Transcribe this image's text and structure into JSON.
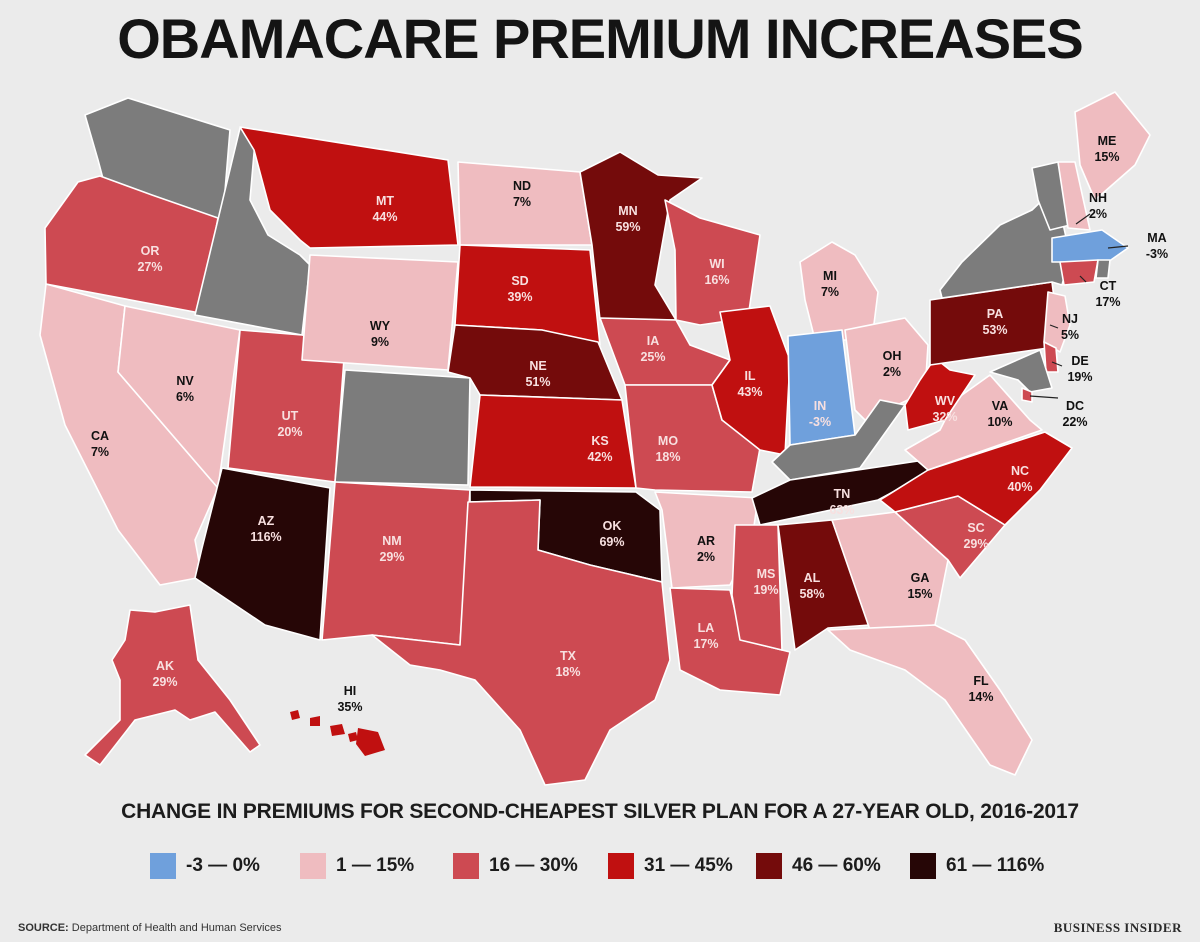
{
  "title": "OBAMACARE PREMIUM INCREASES",
  "subtitle": "CHANGE IN PREMIUMS FOR SECOND-CHEAPEST SILVER PLAN FOR A 27-YEAR OLD, 2016-2017",
  "colors": {
    "c0": "#6fa0dc",
    "c1": "#efbcc0",
    "c2": "#cd4a52",
    "c3": "#c01010",
    "c4": "#740b0b",
    "c5": "#260606",
    "none": "#7c7c7c",
    "border": "#ffffff"
  },
  "legend": [
    {
      "label": "-3 — 0%",
      "color": "#6fa0dc"
    },
    {
      "label": "1 — 15%",
      "color": "#efbcc0"
    },
    {
      "label": "16 — 30%",
      "color": "#cd4a52"
    },
    {
      "label": "31 — 45%",
      "color": "#c01010"
    },
    {
      "label": "46 — 60%",
      "color": "#740b0b"
    },
    {
      "label": "61 — 116%",
      "color": "#260606"
    }
  ],
  "states": [
    {
      "abbr": "WA",
      "value": null,
      "label": ""
    },
    {
      "abbr": "OR",
      "value": 27,
      "label": "27%"
    },
    {
      "abbr": "CA",
      "value": 7,
      "label": "7%"
    },
    {
      "abbr": "ID",
      "value": null,
      "label": ""
    },
    {
      "abbr": "NV",
      "value": 6,
      "label": "6%"
    },
    {
      "abbr": "AZ",
      "value": 116,
      "label": "116%"
    },
    {
      "abbr": "UT",
      "value": 20,
      "label": "20%"
    },
    {
      "abbr": "MT",
      "value": 44,
      "label": "44%"
    },
    {
      "abbr": "WY",
      "value": 9,
      "label": "9%"
    },
    {
      "abbr": "CO",
      "value": null,
      "label": ""
    },
    {
      "abbr": "NM",
      "value": 29,
      "label": "29%"
    },
    {
      "abbr": "ND",
      "value": 7,
      "label": "7%"
    },
    {
      "abbr": "SD",
      "value": 39,
      "label": "39%"
    },
    {
      "abbr": "NE",
      "value": 51,
      "label": "51%"
    },
    {
      "abbr": "KS",
      "value": 42,
      "label": "42%"
    },
    {
      "abbr": "OK",
      "value": 69,
      "label": "69%"
    },
    {
      "abbr": "TX",
      "value": 18,
      "label": "18%"
    },
    {
      "abbr": "MN",
      "value": 59,
      "label": "59%"
    },
    {
      "abbr": "IA",
      "value": 25,
      "label": "25%"
    },
    {
      "abbr": "MO",
      "value": 18,
      "label": "18%"
    },
    {
      "abbr": "AR",
      "value": 2,
      "label": "2%"
    },
    {
      "abbr": "LA",
      "value": 17,
      "label": "17%"
    },
    {
      "abbr": "WI",
      "value": 16,
      "label": "16%"
    },
    {
      "abbr": "IL",
      "value": 43,
      "label": "43%"
    },
    {
      "abbr": "MI",
      "value": 7,
      "label": "7%"
    },
    {
      "abbr": "IN",
      "value": -3,
      "label": "-3%"
    },
    {
      "abbr": "OH",
      "value": 2,
      "label": "2%"
    },
    {
      "abbr": "KY",
      "value": null,
      "label": ""
    },
    {
      "abbr": "TN",
      "value": 63,
      "label": "63%"
    },
    {
      "abbr": "MS",
      "value": 19,
      "label": "19%"
    },
    {
      "abbr": "AL",
      "value": 58,
      "label": "58%"
    },
    {
      "abbr": "GA",
      "value": 15,
      "label": "15%"
    },
    {
      "abbr": "FL",
      "value": 14,
      "label": "14%"
    },
    {
      "abbr": "SC",
      "value": 29,
      "label": "29%"
    },
    {
      "abbr": "NC",
      "value": 40,
      "label": "40%"
    },
    {
      "abbr": "VA",
      "value": 10,
      "label": "10%"
    },
    {
      "abbr": "WV",
      "value": 32,
      "label": "32%"
    },
    {
      "abbr": "PA",
      "value": 53,
      "label": "53%"
    },
    {
      "abbr": "NY",
      "value": null,
      "label": ""
    },
    {
      "abbr": "VT",
      "value": null,
      "label": ""
    },
    {
      "abbr": "NH",
      "value": 2,
      "label": "2%"
    },
    {
      "abbr": "ME",
      "value": 15,
      "label": "15%"
    },
    {
      "abbr": "MA",
      "value": -3,
      "label": "-3%"
    },
    {
      "abbr": "CT",
      "value": 17,
      "label": "17%"
    },
    {
      "abbr": "RI",
      "value": null,
      "label": ""
    },
    {
      "abbr": "NJ",
      "value": 5,
      "label": "5%"
    },
    {
      "abbr": "DE",
      "value": 19,
      "label": "19%"
    },
    {
      "abbr": "MD",
      "value": null,
      "label": ""
    },
    {
      "abbr": "DC",
      "value": 22,
      "label": "22%"
    },
    {
      "abbr": "AK",
      "value": 29,
      "label": "29%"
    },
    {
      "abbr": "HI",
      "value": 35,
      "label": "35%"
    }
  ],
  "source_prefix": "SOURCE:",
  "source_text": "Department of Health and Human Services",
  "brand": "BUSINESS INSIDER"
}
